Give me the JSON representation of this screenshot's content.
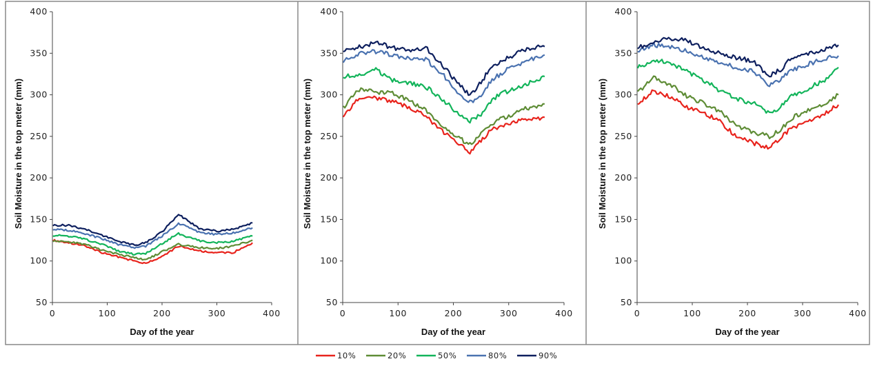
{
  "colors": {
    "10%": "#e8231c",
    "20%": "#5e8c35",
    "50%": "#12b45a",
    "80%": "#4a72b0",
    "90%": "#0d1f5e"
  },
  "legend": {
    "placement": "bottom-center",
    "items": [
      "10%",
      "20%",
      "50%",
      "80%",
      "90%"
    ]
  },
  "chart_data": [
    {
      "type": "line",
      "xlabel": "Day of the year",
      "ylabel": "Soil Moisture in the top meter (mm)",
      "xlim": [
        0,
        400
      ],
      "ylim": [
        50,
        400
      ],
      "xticks": [
        "0",
        "100",
        "200",
        "300",
        "400"
      ],
      "yticks": [
        "50",
        "100",
        "150",
        "200",
        "250",
        "300",
        "350",
        "400"
      ],
      "grid": false,
      "x": [
        1,
        30,
        60,
        90,
        120,
        150,
        170,
        200,
        230,
        250,
        270,
        300,
        330,
        365
      ],
      "series": [
        {
          "name": "10%",
          "values": [
            125,
            122,
            118,
            110,
            105,
            100,
            97,
            105,
            118,
            115,
            112,
            110,
            110,
            122
          ]
        },
        {
          "name": "20%",
          "values": [
            124,
            123,
            120,
            113,
            108,
            104,
            101,
            111,
            120,
            118,
            116,
            115,
            118,
            125
          ]
        },
        {
          "name": "50%",
          "values": [
            131,
            130,
            126,
            120,
            112,
            108,
            109,
            121,
            133,
            128,
            124,
            122,
            124,
            130
          ]
        },
        {
          "name": "80%",
          "values": [
            138,
            137,
            133,
            127,
            120,
            116,
            118,
            130,
            145,
            140,
            134,
            132,
            134,
            140
          ]
        },
        {
          "name": "90%",
          "values": [
            143,
            143,
            138,
            131,
            124,
            119,
            122,
            135,
            156,
            147,
            138,
            136,
            138,
            146
          ]
        }
      ]
    },
    {
      "type": "line",
      "xlabel": "Day of the year",
      "ylabel": "Soil Moisture in the top meter (mm)",
      "xlim": [
        0,
        400
      ],
      "ylim": [
        50,
        400
      ],
      "xticks": [
        "0",
        "100",
        "200",
        "300",
        "400"
      ],
      "yticks": [
        "50",
        "100",
        "150",
        "200",
        "250",
        "300",
        "350",
        "400"
      ],
      "grid": false,
      "x": [
        1,
        30,
        60,
        90,
        120,
        150,
        180,
        210,
        230,
        250,
        270,
        300,
        330,
        365
      ],
      "series": [
        {
          "name": "10%",
          "values": [
            272,
            298,
            296,
            293,
            285,
            275,
            256,
            240,
            231,
            245,
            258,
            265,
            270,
            273
          ]
        },
        {
          "name": "20%",
          "values": [
            285,
            306,
            303,
            302,
            293,
            282,
            263,
            248,
            240,
            253,
            266,
            275,
            283,
            289
          ]
        },
        {
          "name": "50%",
          "values": [
            321,
            325,
            330,
            318,
            314,
            310,
            295,
            276,
            268,
            276,
            295,
            305,
            312,
            322
          ]
        },
        {
          "name": "80%",
          "values": [
            340,
            350,
            352,
            348,
            343,
            343,
            325,
            300,
            291,
            300,
            318,
            332,
            340,
            348
          ]
        },
        {
          "name": "90%",
          "values": [
            352,
            358,
            363,
            357,
            353,
            357,
            336,
            312,
            300,
            315,
            335,
            345,
            355,
            358
          ]
        }
      ]
    },
    {
      "type": "line",
      "xlabel": "Day of the year",
      "ylabel": "Soil Moisture in the top meter (mm)",
      "xlim": [
        0,
        400
      ],
      "ylim": [
        50,
        400
      ],
      "xticks": [
        "0",
        "100",
        "200",
        "300",
        "400"
      ],
      "yticks": [
        "50",
        "100",
        "150",
        "200",
        "250",
        "300",
        "350",
        "400"
      ],
      "grid": false,
      "x": [
        1,
        30,
        60,
        90,
        120,
        150,
        180,
        210,
        240,
        260,
        280,
        310,
        340,
        365
      ],
      "series": [
        {
          "name": "10%",
          "values": [
            290,
            305,
            298,
            285,
            278,
            268,
            250,
            242,
            236,
            248,
            260,
            268,
            278,
            288
          ]
        },
        {
          "name": "20%",
          "values": [
            303,
            320,
            313,
            298,
            290,
            280,
            263,
            255,
            250,
            258,
            272,
            282,
            290,
            300
          ]
        },
        {
          "name": "50%",
          "values": [
            333,
            342,
            338,
            328,
            318,
            305,
            295,
            290,
            278,
            285,
            298,
            308,
            318,
            333
          ]
        },
        {
          "name": "80%",
          "values": [
            352,
            360,
            357,
            353,
            346,
            338,
            333,
            328,
            312,
            318,
            330,
            337,
            343,
            347
          ]
        },
        {
          "name": "90%",
          "values": [
            356,
            365,
            368,
            365,
            357,
            350,
            345,
            340,
            323,
            330,
            345,
            350,
            355,
            360
          ]
        }
      ]
    }
  ]
}
